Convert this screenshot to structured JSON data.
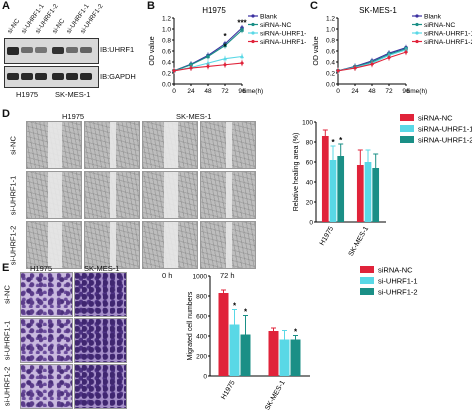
{
  "panels": {
    "A": "A",
    "B": "B",
    "C": "C",
    "D": "D",
    "E": "E"
  },
  "blot": {
    "lanes": [
      "si-NC",
      "si-UHRF1-1",
      "si-UHRF1-2",
      "si-NC",
      "si-UHRF1-1",
      "si-UHRF1-2"
    ],
    "row1_label": "IB:UHRF1",
    "row2_label": "IB:GAPDH",
    "group1": "H1975",
    "group2": "SK-MES-1",
    "uhrf1_intensity": [
      0.9,
      0.55,
      0.5,
      0.85,
      0.55,
      0.6
    ],
    "gapdh_intensity": [
      0.9,
      0.9,
      0.9,
      0.9,
      0.9,
      0.9
    ]
  },
  "chart_B": {
    "type": "line",
    "title": "H1975",
    "xlabel": "time(h)",
    "ylabel": "OD value",
    "x": [
      0,
      24,
      48,
      72,
      96
    ],
    "ylim": [
      0,
      1.2
    ],
    "yticks": [
      "0.0",
      "0.2",
      "0.4",
      "0.6",
      "0.8",
      "1.0",
      "1.2"
    ],
    "series": [
      {
        "name": "Blank",
        "color": "#3a2fa0",
        "values": [
          0.24,
          0.36,
          0.52,
          0.73,
          1.02
        ]
      },
      {
        "name": "siRNA-NC",
        "color": "#1a8f86",
        "values": [
          0.24,
          0.35,
          0.5,
          0.7,
          0.98
        ]
      },
      {
        "name": "siRNA-UHRF1-1",
        "color": "#59d8e6",
        "values": [
          0.24,
          0.3,
          0.38,
          0.46,
          0.5
        ]
      },
      {
        "name": "siRNA-UHRF1-2",
        "color": "#e0233a",
        "values": [
          0.24,
          0.29,
          0.32,
          0.35,
          0.38
        ]
      }
    ],
    "annotations": [
      "*",
      "*",
      "***"
    ]
  },
  "chart_C": {
    "type": "line",
    "title": "SK-MES-1",
    "xlabel": "time(h)",
    "ylabel": "OD value",
    "x": [
      0,
      24,
      48,
      72,
      96
    ],
    "ylim": [
      0,
      1.2
    ],
    "yticks": [
      "0.0",
      "0.2",
      "0.4",
      "0.6",
      "0.8",
      "1.0",
      "1.2"
    ],
    "series": [
      {
        "name": "Blank",
        "color": "#3a2fa0",
        "values": [
          0.24,
          0.32,
          0.42,
          0.56,
          0.66
        ]
      },
      {
        "name": "siRNA-NC",
        "color": "#1a8f86",
        "values": [
          0.24,
          0.31,
          0.4,
          0.54,
          0.64
        ]
      },
      {
        "name": "siRNA-UHRF1-1",
        "color": "#59d8e6",
        "values": [
          0.24,
          0.3,
          0.38,
          0.52,
          0.62
        ]
      },
      {
        "name": "siRNA-UHRF1-2",
        "color": "#e0233a",
        "values": [
          0.24,
          0.29,
          0.36,
          0.48,
          0.58
        ]
      }
    ]
  },
  "wound": {
    "title_h": "H1975",
    "title_s": "SK-MES-1",
    "rows": [
      "si-NC",
      "si-UHRF1-1",
      "si-UHRF1-2"
    ],
    "cols": [
      "0 h",
      "72 h",
      "0 h",
      "72 h"
    ]
  },
  "chart_D": {
    "type": "bar",
    "ylabel": "Relative healing area (%)",
    "categories": [
      "H1975",
      "SK-MES-1"
    ],
    "ylim": [
      0,
      100
    ],
    "yticks": [
      "0",
      "20",
      "40",
      "60",
      "80",
      "100"
    ],
    "series": [
      {
        "name": "siRNA-NC",
        "color": "#e0233a",
        "values": [
          86,
          57
        ],
        "err": [
          6,
          15
        ]
      },
      {
        "name": "siRNA-UHRF1-1",
        "color": "#59d8e6",
        "values": [
          62,
          60
        ],
        "err": [
          14,
          12
        ]
      },
      {
        "name": "siRNA-UHRF1-2",
        "color": "#1a8f86",
        "values": [
          66,
          54
        ],
        "err": [
          12,
          14
        ]
      }
    ],
    "annotations": [
      "*",
      "*"
    ]
  },
  "transwell": {
    "title_h": "H1975",
    "title_s": "SK-MES-1",
    "rows": [
      "si-NC",
      "si-UHRF1-1",
      "si-UHRF1-2"
    ]
  },
  "chart_E": {
    "type": "bar",
    "ylabel": "Migrated cell numbers",
    "categories": [
      "H1975",
      "SK-MES-1"
    ],
    "ylim": [
      0,
      1000
    ],
    "yticks": [
      "0",
      "200",
      "400",
      "600",
      "800",
      "1000"
    ],
    "series": [
      {
        "name": "siRNA-NC",
        "color": "#e0233a",
        "values": [
          830,
          450
        ],
        "err": [
          30,
          30
        ]
      },
      {
        "name": "si-UHRF1-1",
        "color": "#59d8e6",
        "values": [
          515,
          365
        ],
        "err": [
          150,
          90
        ]
      },
      {
        "name": "si-UHRF1-2",
        "color": "#1a8f86",
        "values": [
          415,
          365
        ],
        "err": [
          190,
          40
        ]
      }
    ],
    "annotations": [
      "*",
      "*",
      "*"
    ]
  }
}
